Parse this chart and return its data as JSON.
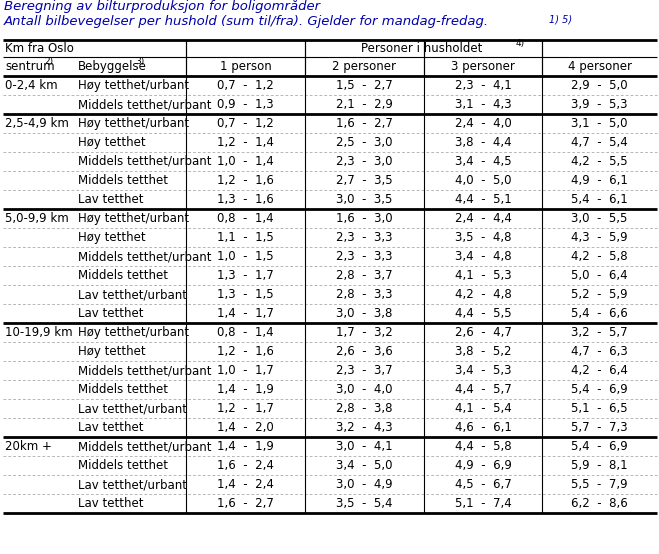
{
  "title_line1": "Beregning av bilturproduksjon for boligområder",
  "title_line2": "Antall bilbevegelser per hushold (sum til/fra). Gjelder for mandag-fredag.",
  "title_superscript": "1) 5)",
  "col_headers_persons": [
    "1 person",
    "2 personer",
    "3 personer",
    "4 personer"
  ],
  "sections": [
    {
      "label": "0-2,4 km",
      "rows": [
        {
          "bebyggelse": "Høy tetthet/urbant",
          "p1": "0,7  -  1,2",
          "p2": "1,5  -  2,7",
          "p3": "2,3  -  4,1",
          "p4": "2,9  -  5,0"
        },
        {
          "bebyggelse": "Middels tetthet/urbant",
          "p1": "0,9  -  1,3",
          "p2": "2,1  -  2,9",
          "p3": "3,1  -  4,3",
          "p4": "3,9  -  5,3"
        }
      ]
    },
    {
      "label": "2,5-4,9 km",
      "rows": [
        {
          "bebyggelse": "Høy tetthet/urbant",
          "p1": "0,7  -  1,2",
          "p2": "1,6  -  2,7",
          "p3": "2,4  -  4,0",
          "p4": "3,1  -  5,0"
        },
        {
          "bebyggelse": "Høy tetthet",
          "p1": "1,2  -  1,4",
          "p2": "2,5  -  3,0",
          "p3": "3,8  -  4,4",
          "p4": "4,7  -  5,4"
        },
        {
          "bebyggelse": "Middels tetthet/urbant",
          "p1": "1,0  -  1,4",
          "p2": "2,3  -  3,0",
          "p3": "3,4  -  4,5",
          "p4": "4,2  -  5,5"
        },
        {
          "bebyggelse": "Middels tetthet",
          "p1": "1,2  -  1,6",
          "p2": "2,7  -  3,5",
          "p3": "4,0  -  5,0",
          "p4": "4,9  -  6,1"
        },
        {
          "bebyggelse": "Lav tetthet",
          "p1": "1,3  -  1,6",
          "p2": "3,0  -  3,5",
          "p3": "4,4  -  5,1",
          "p4": "5,4  -  6,1"
        }
      ]
    },
    {
      "label": "5,0-9,9 km",
      "rows": [
        {
          "bebyggelse": "Høy tetthet/urbant",
          "p1": "0,8  -  1,4",
          "p2": "1,6  -  3,0",
          "p3": "2,4  -  4,4",
          "p4": "3,0  -  5,5"
        },
        {
          "bebyggelse": "Høy tetthet",
          "p1": "1,1  -  1,5",
          "p2": "2,3  -  3,3",
          "p3": "3,5  -  4,8",
          "p4": "4,3  -  5,9"
        },
        {
          "bebyggelse": "Middels tetthet/urbant",
          "p1": "1,0  -  1,5",
          "p2": "2,3  -  3,3",
          "p3": "3,4  -  4,8",
          "p4": "4,2  -  5,8"
        },
        {
          "bebyggelse": "Middels tetthet",
          "p1": "1,3  -  1,7",
          "p2": "2,8  -  3,7",
          "p3": "4,1  -  5,3",
          "p4": "5,0  -  6,4"
        },
        {
          "bebyggelse": "Lav tetthet/urbant",
          "p1": "1,3  -  1,5",
          "p2": "2,8  -  3,3",
          "p3": "4,2  -  4,8",
          "p4": "5,2  -  5,9"
        },
        {
          "bebyggelse": "Lav tetthet",
          "p1": "1,4  -  1,7",
          "p2": "3,0  -  3,8",
          "p3": "4,4  -  5,5",
          "p4": "5,4  -  6,6"
        }
      ]
    },
    {
      "label": "10-19,9 km",
      "rows": [
        {
          "bebyggelse": "Høy tetthet/urbant",
          "p1": "0,8  -  1,4",
          "p2": "1,7  -  3,2",
          "p3": "2,6  -  4,7",
          "p4": "3,2  -  5,7"
        },
        {
          "bebyggelse": "Høy tetthet",
          "p1": "1,2  -  1,6",
          "p2": "2,6  -  3,6",
          "p3": "3,8  -  5,2",
          "p4": "4,7  -  6,3"
        },
        {
          "bebyggelse": "Middels tetthet/urbant",
          "p1": "1,0  -  1,7",
          "p2": "2,3  -  3,7",
          "p3": "3,4  -  5,3",
          "p4": "4,2  -  6,4"
        },
        {
          "bebyggelse": "Middels tetthet",
          "p1": "1,4  -  1,9",
          "p2": "3,0  -  4,0",
          "p3": "4,4  -  5,7",
          "p4": "5,4  -  6,9"
        },
        {
          "bebyggelse": "Lav tetthet/urbant",
          "p1": "1,2  -  1,7",
          "p2": "2,8  -  3,8",
          "p3": "4,1  -  5,4",
          "p4": "5,1  -  6,5"
        },
        {
          "bebyggelse": "Lav tetthet",
          "p1": "1,4  -  2,0",
          "p2": "3,2  -  4,3",
          "p3": "4,6  -  6,1",
          "p4": "5,7  -  7,3"
        }
      ]
    },
    {
      "label": "20km +",
      "rows": [
        {
          "bebyggelse": "Middels tetthet/urbant",
          "p1": "1,4  -  1,9",
          "p2": "3,0  -  4,1",
          "p3": "4,4  -  5,8",
          "p4": "5,4  -  6,9"
        },
        {
          "bebyggelse": "Middels tetthet",
          "p1": "1,6  -  2,4",
          "p2": "3,4  -  5,0",
          "p3": "4,9  -  6,9",
          "p4": "5,9  -  8,1"
        },
        {
          "bebyggelse": "Lav tetthet/urbant",
          "p1": "1,4  -  2,4",
          "p2": "3,0  -  4,9",
          "p3": "4,5  -  6,7",
          "p4": "5,5  -  7,9"
        },
        {
          "bebyggelse": "Lav tetthet",
          "p1": "1,6  -  2,7",
          "p2": "3,5  -  5,4",
          "p3": "5,1  -  7,4",
          "p4": "6,2  -  8,6"
        }
      ]
    }
  ],
  "title_color": "#0000aa",
  "text_color": "#000000",
  "bg_color": "#ffffff"
}
